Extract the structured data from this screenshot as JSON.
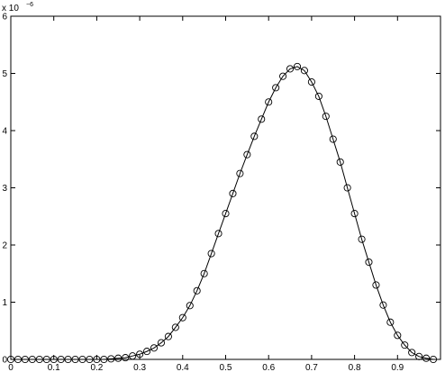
{
  "chart_data": {
    "type": "line",
    "title": "",
    "xlabel": "",
    "ylabel": "",
    "xlim": [
      0,
      1
    ],
    "ylim": [
      0,
      6
    ],
    "x_ticks": [
      "0",
      "0.1",
      "0.2",
      "0.3",
      "0.4",
      "0.5",
      "0.6",
      "0.7",
      "0.8",
      "0.9"
    ],
    "y_ticks": [
      "0",
      "1",
      "2",
      "3",
      "4",
      "5",
      "6"
    ],
    "y_scale_label": {
      "prefix": "x 10",
      "exponent": "−6"
    },
    "grid": false,
    "legend": "none",
    "line_color": "#000000",
    "marker_style": "circle-open",
    "series": [
      {
        "x": [
          0.0,
          0.0167,
          0.0333,
          0.05,
          0.0667,
          0.0833,
          0.1,
          0.1167,
          0.1333,
          0.15,
          0.1667,
          0.1833,
          0.2,
          0.2167,
          0.2333,
          0.25,
          0.2667,
          0.2833,
          0.3,
          0.3167,
          0.3333,
          0.35,
          0.3667,
          0.3833,
          0.4,
          0.4167,
          0.4333,
          0.45,
          0.4667,
          0.4833,
          0.5,
          0.5167,
          0.5333,
          0.55,
          0.5667,
          0.5833,
          0.6,
          0.6167,
          0.6333,
          0.65,
          0.6667,
          0.6833,
          0.7,
          0.7167,
          0.7333,
          0.75,
          0.7667,
          0.7833,
          0.8,
          0.8167,
          0.8333,
          0.85,
          0.8667,
          0.8833,
          0.9,
          0.9167,
          0.9333,
          0.95,
          0.9667,
          0.9833
        ],
        "y": [
          0.0,
          0.0,
          0.0,
          0.0,
          0.0,
          0.0,
          0.0,
          0.0,
          0.0,
          0.0,
          0.0,
          0.0,
          0.0,
          0.0,
          0.01,
          0.02,
          0.03,
          0.06,
          0.09,
          0.14,
          0.2,
          0.29,
          0.4,
          0.56,
          0.73,
          0.94,
          1.2,
          1.5,
          1.85,
          2.2,
          2.55,
          2.9,
          3.25,
          3.58,
          3.9,
          4.2,
          4.5,
          4.75,
          4.95,
          5.08,
          5.12,
          5.05,
          4.85,
          4.6,
          4.25,
          3.85,
          3.45,
          3.0,
          2.55,
          2.1,
          1.7,
          1.3,
          0.95,
          0.65,
          0.42,
          0.25,
          0.12,
          0.05,
          0.02,
          0.0
        ]
      }
    ]
  }
}
